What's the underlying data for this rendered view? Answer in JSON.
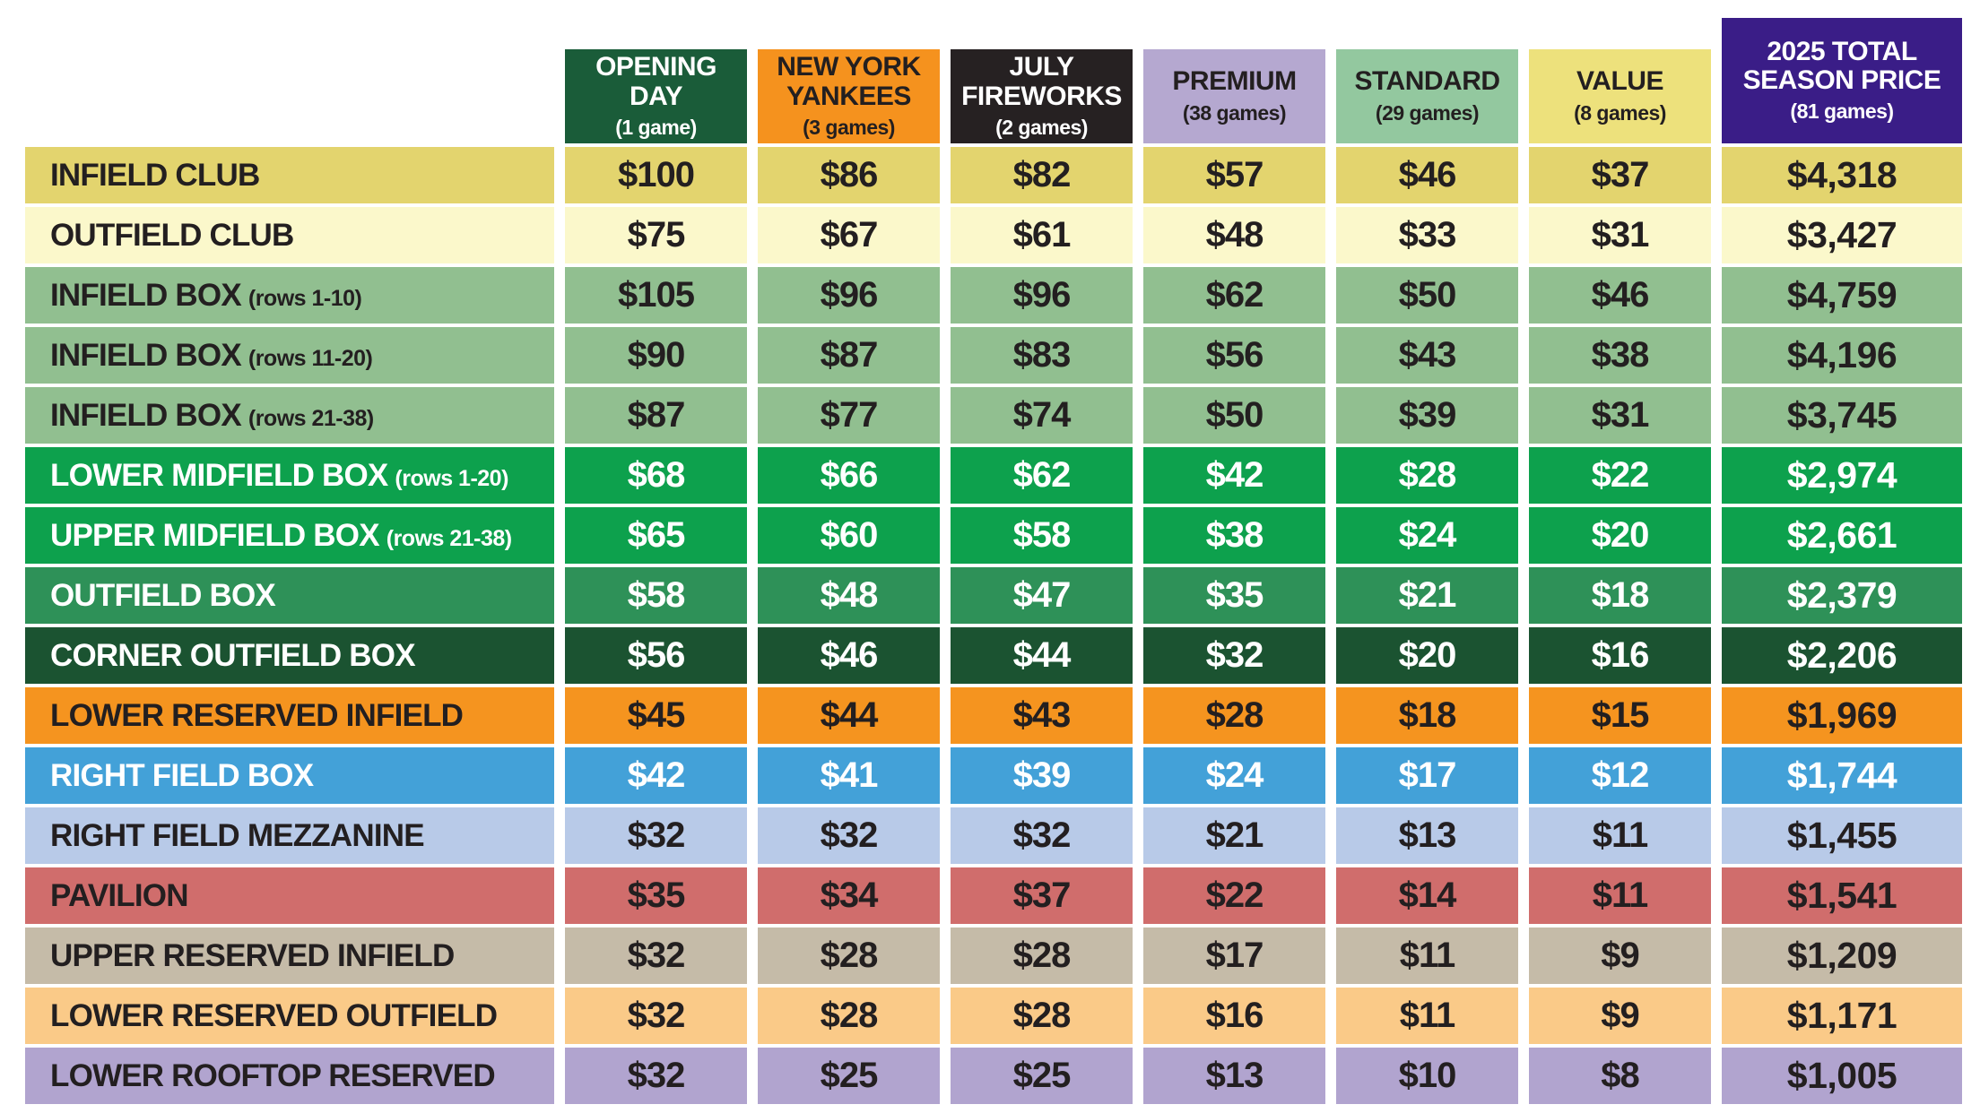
{
  "table": {
    "columns": [
      {
        "label": "OPENING DAY",
        "note": "(1 game)",
        "bg": "#1A5C39",
        "fg": "#FFFFFF"
      },
      {
        "label": "NEW YORK YANKEES",
        "note": "(3 games)",
        "bg": "#F5921E",
        "fg": "#231F20"
      },
      {
        "label": "JULY FIREWORKS",
        "note": "(2 games)",
        "bg": "#262122",
        "fg": "#FFFFFF"
      },
      {
        "label": "PREMIUM",
        "note": "(38 games)",
        "bg": "#B5A8D0",
        "fg": "#231F20"
      },
      {
        "label": "STANDARD",
        "note": "(29 games)",
        "bg": "#93C89F",
        "fg": "#231F20"
      },
      {
        "label": "VALUE",
        "note": "(8 games)",
        "bg": "#EDE17C",
        "fg": "#231F20"
      },
      {
        "label": "2025 TOTAL SEASON PRICE",
        "note": "(81 games)",
        "bg": "#3A1D87",
        "fg": "#FFFFFF"
      }
    ],
    "rows": [
      {
        "label": "INFIELD CLUB",
        "note": "",
        "bg": "#E3D46E",
        "fg": "#231F20",
        "prices": [
          "$100",
          "$86",
          "$82",
          "$57",
          "$46",
          "$37",
          "$4,318"
        ]
      },
      {
        "label": "OUTFIELD CLUB",
        "note": "",
        "bg": "#FBF8CB",
        "fg": "#231F20",
        "prices": [
          "$75",
          "$67",
          "$61",
          "$48",
          "$33",
          "$31",
          "$3,427"
        ]
      },
      {
        "label": "INFIELD BOX",
        "note": "(rows 1-10)",
        "bg": "#91BF90",
        "fg": "#231F20",
        "prices": [
          "$105",
          "$96",
          "$96",
          "$62",
          "$50",
          "$46",
          "$4,759"
        ]
      },
      {
        "label": "INFIELD BOX",
        "note": "(rows 11-20)",
        "bg": "#91BF90",
        "fg": "#231F20",
        "prices": [
          "$90",
          "$87",
          "$83",
          "$56",
          "$43",
          "$38",
          "$4,196"
        ]
      },
      {
        "label": "INFIELD BOX",
        "note": "(rows 21-38)",
        "bg": "#91BF90",
        "fg": "#231F20",
        "prices": [
          "$87",
          "$77",
          "$74",
          "$50",
          "$39",
          "$31",
          "$3,745"
        ]
      },
      {
        "label": "LOWER MIDFIELD BOX",
        "note": "(rows 1-20)",
        "bg": "#0DA14D",
        "fg": "#FFFFFF",
        "prices": [
          "$68",
          "$66",
          "$62",
          "$42",
          "$28",
          "$22",
          "$2,974"
        ]
      },
      {
        "label": "UPPER MIDFIELD BOX",
        "note": "(rows 21-38)",
        "bg": "#0DA14D",
        "fg": "#FFFFFF",
        "prices": [
          "$65",
          "$60",
          "$58",
          "$38",
          "$24",
          "$20",
          "$2,661"
        ]
      },
      {
        "label": "OUTFIELD BOX",
        "note": "",
        "bg": "#2E9158",
        "fg": "#FFFFFF",
        "prices": [
          "$58",
          "$48",
          "$47",
          "$35",
          "$21",
          "$18",
          "$2,379"
        ]
      },
      {
        "label": "CORNER OUTFIELD BOX",
        "note": "",
        "bg": "#1B5331",
        "fg": "#FFFFFF",
        "prices": [
          "$56",
          "$46",
          "$44",
          "$32",
          "$20",
          "$16",
          "$2,206"
        ]
      },
      {
        "label": "LOWER RESERVED INFIELD",
        "note": "",
        "bg": "#F5941F",
        "fg": "#231F20",
        "prices": [
          "$45",
          "$44",
          "$43",
          "$28",
          "$18",
          "$15",
          "$1,969"
        ]
      },
      {
        "label": "RIGHT FIELD BOX",
        "note": "",
        "bg": "#43A1D8",
        "fg": "#FFFFFF",
        "prices": [
          "$42",
          "$41",
          "$39",
          "$24",
          "$17",
          "$12",
          "$1,744"
        ]
      },
      {
        "label": "RIGHT FIELD MEZZANINE",
        "note": "",
        "bg": "#B8CAE8",
        "fg": "#231F20",
        "prices": [
          "$32",
          "$32",
          "$32",
          "$21",
          "$13",
          "$11",
          "$1,455"
        ]
      },
      {
        "label": "PAVILION",
        "note": "",
        "bg": "#D06D6C",
        "fg": "#231F20",
        "prices": [
          "$35",
          "$34",
          "$37",
          "$22",
          "$14",
          "$11",
          "$1,541"
        ]
      },
      {
        "label": "UPPER RESERVED INFIELD",
        "note": "",
        "bg": "#C5BBA8",
        "fg": "#231F20",
        "prices": [
          "$32",
          "$28",
          "$28",
          "$17",
          "$11",
          "$9",
          "$1,209"
        ]
      },
      {
        "label": "LOWER RESERVED OUTFIELD",
        "note": "",
        "bg": "#FACA88",
        "fg": "#231F20",
        "prices": [
          "$32",
          "$28",
          "$28",
          "$16",
          "$11",
          "$9",
          "$1,171"
        ]
      },
      {
        "label": "LOWER ROOFTOP RESERVED",
        "note": "",
        "bg": "#B1A4CF",
        "fg": "#231F20",
        "prices": [
          "$32",
          "$25",
          "$25",
          "$13",
          "$10",
          "$8",
          "$1,005"
        ]
      }
    ]
  },
  "chart_data": {
    "type": "table",
    "columns": [
      "OPENING DAY (1 game)",
      "NEW YORK YANKEES (3 games)",
      "JULY FIREWORKS (2 games)",
      "PREMIUM (38 games)",
      "STANDARD (29 games)",
      "VALUE (8 games)",
      "2025 TOTAL SEASON PRICE (81 games)"
    ],
    "rows": [
      {
        "section": "INFIELD CLUB",
        "values_usd": [
          100,
          86,
          82,
          57,
          46,
          37
        ],
        "total_usd": 4318
      },
      {
        "section": "OUTFIELD CLUB",
        "values_usd": [
          75,
          67,
          61,
          48,
          33,
          31
        ],
        "total_usd": 3427
      },
      {
        "section": "INFIELD BOX (rows 1-10)",
        "values_usd": [
          105,
          96,
          96,
          62,
          50,
          46
        ],
        "total_usd": 4759
      },
      {
        "section": "INFIELD BOX (rows 11-20)",
        "values_usd": [
          90,
          87,
          83,
          56,
          43,
          38
        ],
        "total_usd": 4196
      },
      {
        "section": "INFIELD BOX (rows 21-38)",
        "values_usd": [
          87,
          77,
          74,
          50,
          39,
          31
        ],
        "total_usd": 3745
      },
      {
        "section": "LOWER MIDFIELD BOX (rows 1-20)",
        "values_usd": [
          68,
          66,
          62,
          42,
          28,
          22
        ],
        "total_usd": 2974
      },
      {
        "section": "UPPER MIDFIELD BOX (rows 21-38)",
        "values_usd": [
          65,
          60,
          58,
          38,
          24,
          20
        ],
        "total_usd": 2661
      },
      {
        "section": "OUTFIELD BOX",
        "values_usd": [
          58,
          48,
          47,
          35,
          21,
          18
        ],
        "total_usd": 2379
      },
      {
        "section": "CORNER OUTFIELD BOX",
        "values_usd": [
          56,
          46,
          44,
          32,
          20,
          16
        ],
        "total_usd": 2206
      },
      {
        "section": "LOWER RESERVED INFIELD",
        "values_usd": [
          45,
          44,
          43,
          28,
          18,
          15
        ],
        "total_usd": 1969
      },
      {
        "section": "RIGHT FIELD BOX",
        "values_usd": [
          42,
          41,
          39,
          24,
          17,
          12
        ],
        "total_usd": 1744
      },
      {
        "section": "RIGHT FIELD MEZZANINE",
        "values_usd": [
          32,
          32,
          32,
          21,
          13,
          11
        ],
        "total_usd": 1455
      },
      {
        "section": "PAVILION",
        "values_usd": [
          35,
          34,
          37,
          22,
          14,
          11
        ],
        "total_usd": 1541
      },
      {
        "section": "UPPER RESERVED INFIELD",
        "values_usd": [
          32,
          28,
          28,
          17,
          11,
          9
        ],
        "total_usd": 1209
      },
      {
        "section": "LOWER RESERVED OUTFIELD",
        "values_usd": [
          32,
          28,
          28,
          16,
          11,
          9
        ],
        "total_usd": 1171
      },
      {
        "section": "LOWER ROOFTOP RESERVED",
        "values_usd": [
          32,
          25,
          25,
          13,
          10,
          8
        ],
        "total_usd": 1005
      }
    ]
  }
}
